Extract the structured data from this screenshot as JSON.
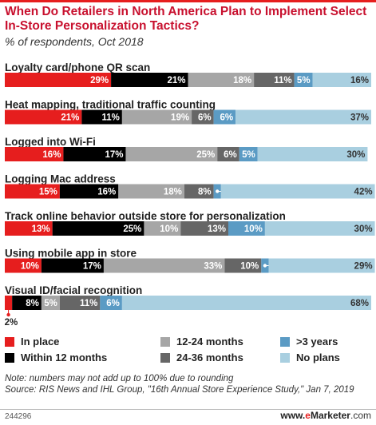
{
  "header": {
    "title": "When Do Retailers in North America Plan to Implement Select In-Store Personalization Tactics?",
    "subtitle": "% of respondents, Oct 2018"
  },
  "legend": {
    "items": [
      {
        "label": "In place",
        "color": "#e61e1e"
      },
      {
        "label": "Within 12 months",
        "color": "#000000"
      },
      {
        "label": "12-24 months",
        "color": "#a6a6a6"
      },
      {
        "label": "24-36 months",
        "color": "#666666"
      },
      {
        "label": ">3 years",
        "color": "#5b9bc4"
      },
      {
        "label": "No plans",
        "color": "#a9cfe0"
      }
    ]
  },
  "footer": {
    "note": "Note: numbers may not add up to 100% due to rounding",
    "source": "Source: RIS News and IHL Group, \"16th Annual Store Experience Study,\" Jan 7, 2019",
    "chart_id": "244296",
    "brand_e": "e",
    "brand_marketer": "Marketer",
    "brand_domain": ".com"
  },
  "chart_data": {
    "type": "bar",
    "stacked": true,
    "orientation": "horizontal",
    "title": "When Do Retailers in North America Plan to Implement Select In-Store Personalization Tactics?",
    "subtitle": "% of respondents, Oct 2018",
    "categories": [
      "Loyalty card/phone QR scan",
      "Heat mapping, traditional traffic counting",
      "Logged into Wi-Fi",
      "Logging Mac address",
      "Track online behavior outside store for personalization",
      "Using mobile app in store",
      "Visual ID/facial recognition"
    ],
    "series": [
      {
        "name": "In place",
        "color": "#e61e1e",
        "label_color": "#ffffff",
        "values": [
          29,
          21,
          16,
          15,
          13,
          10,
          2
        ]
      },
      {
        "name": "Within 12 months",
        "color": "#000000",
        "label_color": "#ffffff",
        "values": [
          21,
          11,
          17,
          16,
          25,
          17,
          8
        ]
      },
      {
        "name": "12-24 months",
        "color": "#a6a6a6",
        "label_color": "#ffffff",
        "values": [
          18,
          19,
          25,
          18,
          10,
          33,
          5
        ]
      },
      {
        "name": "24-36 months",
        "color": "#666666",
        "label_color": "#ffffff",
        "values": [
          11,
          6,
          6,
          8,
          13,
          10,
          11
        ]
      },
      {
        "name": ">3 years",
        "color": "#5b9bc4",
        "label_color": "#ffffff",
        "values": [
          5,
          6,
          5,
          2,
          10,
          2,
          6
        ]
      },
      {
        "name": "No plans",
        "color": "#a9cfe0",
        "label_color": "#333333",
        "values": [
          16,
          37,
          30,
          42,
          30,
          29,
          68
        ]
      }
    ],
    "value_labels": [
      [
        "29%",
        "21%",
        "18%",
        "11%",
        "5%",
        "16%"
      ],
      [
        "21%",
        "11%",
        "19%",
        "6%",
        "6%",
        "37%"
      ],
      [
        "16%",
        "17%",
        "25%",
        "6%",
        "5%",
        "30%"
      ],
      [
        "15%",
        "16%",
        "18%",
        "8%",
        "2%",
        "42%"
      ],
      [
        "13%",
        "25%",
        "10%",
        "13%",
        "10%",
        "30%"
      ],
      [
        "10%",
        "17%",
        "33%",
        "10%",
        "2%",
        "29%"
      ],
      [
        "2%",
        "8%",
        "5%",
        "11%",
        "6%",
        "68%"
      ]
    ],
    "xlim": [
      0,
      100
    ],
    "grid": false,
    "legend_position": "bottom"
  }
}
